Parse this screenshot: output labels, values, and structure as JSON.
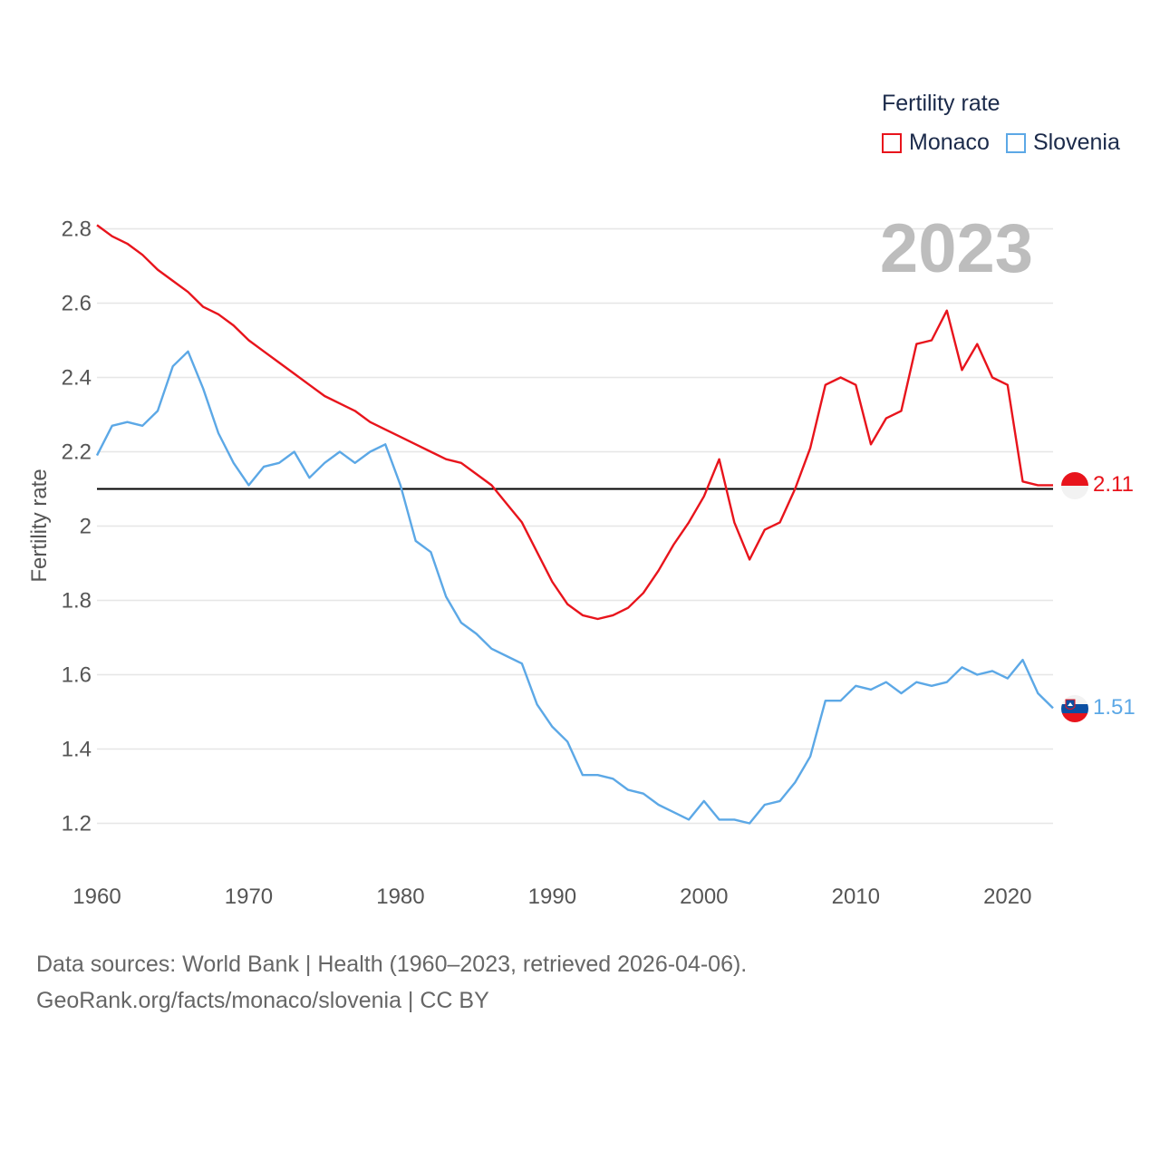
{
  "legend": {
    "title": "Fertility rate",
    "items": [
      {
        "label": "Monaco",
        "color": "#e8141c"
      },
      {
        "label": "Slovenia",
        "color": "#5ca8e6"
      }
    ]
  },
  "year_label": "2023",
  "footer": {
    "line1": "Data sources: World Bank | Health (1960–2023, retrieved 2026-04-06).",
    "line2": "GeoRank.org/facts/monaco/slovenia | CC BY"
  },
  "chart_data": {
    "type": "line",
    "title": "Fertility rate",
    "xlabel": "",
    "ylabel": "Fertility rate",
    "xlim": [
      1960,
      2023
    ],
    "ylim": [
      1.1,
      2.85
    ],
    "x_ticks": [
      1960,
      1970,
      1980,
      1990,
      2000,
      2010,
      2020
    ],
    "x_tick_labels": [
      "1960",
      "1970",
      "1980",
      "1990",
      "2000",
      "2010",
      "2020"
    ],
    "y_ticks": [
      1.2,
      1.4,
      1.6,
      1.8,
      2.0,
      2.2,
      2.4,
      2.6,
      2.8
    ],
    "y_tick_labels": [
      "1.2",
      "1.4",
      "1.6",
      "1.8",
      "2",
      "2.2",
      "2.4",
      "2.6",
      "2.8"
    ],
    "grid": true,
    "reference_line": {
      "y": 2.1,
      "color": "#000000"
    },
    "x": [
      1960,
      1961,
      1962,
      1963,
      1964,
      1965,
      1966,
      1967,
      1968,
      1969,
      1970,
      1971,
      1972,
      1973,
      1974,
      1975,
      1976,
      1977,
      1978,
      1979,
      1980,
      1981,
      1982,
      1983,
      1984,
      1985,
      1986,
      1987,
      1988,
      1989,
      1990,
      1991,
      1992,
      1993,
      1994,
      1995,
      1996,
      1997,
      1998,
      1999,
      2000,
      2001,
      2002,
      2003,
      2004,
      2005,
      2006,
      2007,
      2008,
      2009,
      2010,
      2011,
      2012,
      2013,
      2014,
      2015,
      2016,
      2017,
      2018,
      2019,
      2020,
      2021,
      2022,
      2023
    ],
    "series": [
      {
        "name": "Monaco",
        "color": "#e8141c",
        "end_label": "2.11",
        "values": [
          2.81,
          2.78,
          2.76,
          2.73,
          2.69,
          2.66,
          2.63,
          2.59,
          2.57,
          2.54,
          2.5,
          2.47,
          2.44,
          2.41,
          2.38,
          2.35,
          2.33,
          2.31,
          2.28,
          2.26,
          2.24,
          2.22,
          2.2,
          2.18,
          2.17,
          2.14,
          2.11,
          2.06,
          2.01,
          1.93,
          1.85,
          1.79,
          1.76,
          1.75,
          1.76,
          1.78,
          1.82,
          1.88,
          1.95,
          2.01,
          2.08,
          2.18,
          2.01,
          1.91,
          1.99,
          2.01,
          2.1,
          2.21,
          2.38,
          2.4,
          2.38,
          2.22,
          2.29,
          2.31,
          2.49,
          2.5,
          2.58,
          2.42,
          2.49,
          2.4,
          2.38,
          2.12,
          2.11,
          2.11
        ]
      },
      {
        "name": "Slovenia",
        "color": "#5ca8e6",
        "end_label": "1.51",
        "values": [
          2.19,
          2.27,
          2.28,
          2.27,
          2.31,
          2.43,
          2.47,
          2.37,
          2.25,
          2.17,
          2.11,
          2.16,
          2.17,
          2.2,
          2.13,
          2.17,
          2.2,
          2.17,
          2.2,
          2.22,
          2.11,
          1.96,
          1.93,
          1.81,
          1.74,
          1.71,
          1.67,
          1.65,
          1.63,
          1.52,
          1.46,
          1.42,
          1.33,
          1.33,
          1.32,
          1.29,
          1.28,
          1.25,
          1.23,
          1.21,
          1.26,
          1.21,
          1.21,
          1.2,
          1.25,
          1.26,
          1.31,
          1.38,
          1.53,
          1.53,
          1.57,
          1.56,
          1.58,
          1.55,
          1.58,
          1.57,
          1.58,
          1.62,
          1.6,
          1.61,
          1.59,
          1.64,
          1.55,
          1.51
        ]
      }
    ]
  }
}
